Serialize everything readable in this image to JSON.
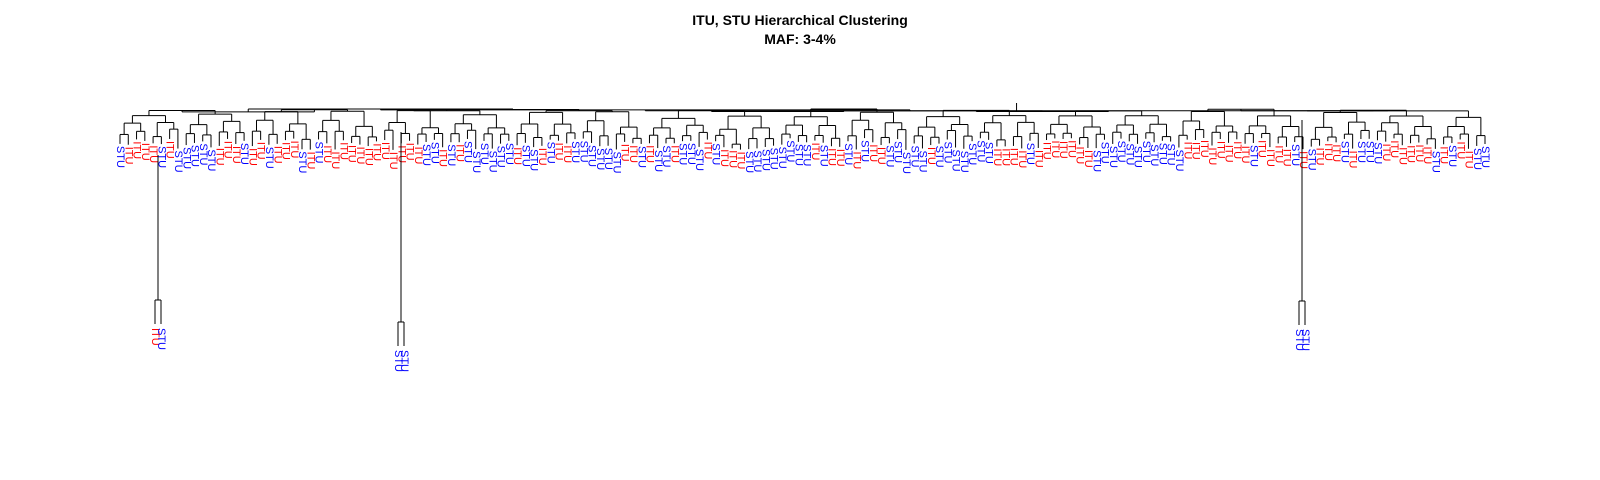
{
  "chart_data": {
    "type": "dendrogram",
    "title": "ITU, STU Hierarchical Clustering",
    "subtitle": "MAF: 3-4%",
    "groups": [
      "ITU",
      "STU"
    ],
    "colors": {
      "ITU": "#ff0000",
      "STU": "#0000ff",
      "branch": "#000000"
    },
    "outlier_clusters": [
      {
        "leaves": [
          "ITU",
          "STU"
        ]
      },
      {
        "leaves": [
          "STU",
          "STU"
        ]
      },
      {
        "leaves": [
          "STU",
          "STU"
        ]
      }
    ],
    "leaves": [
      "STU",
      "ITU",
      "ITU",
      "ITU",
      "ITU",
      "STU",
      "ITU",
      "STU",
      "STU",
      "STU",
      "STU",
      "STU",
      "ITU",
      "ITU",
      "ITU",
      "STU",
      "ITU",
      "ITU",
      "STU",
      "ITU",
      "ITU",
      "ITU",
      "STU",
      "ITU",
      "STU",
      "ITU",
      "ITU",
      "ITU",
      "ITU",
      "ITU",
      "ITU",
      "ITU",
      "ITU",
      "ITU",
      "ITU",
      "ITU",
      "ITU",
      "STU",
      "STU",
      "ITU",
      "STU",
      "ITU",
      "STU",
      "STU",
      "STU",
      "STU",
      "STU",
      "STU",
      "ITU",
      "STU",
      "STU",
      "ITU",
      "STU",
      "ITU",
      "ITU",
      "STU",
      "STU",
      "STU",
      "STU",
      "STU",
      "STU",
      "ITU",
      "ITU",
      "STU",
      "ITU",
      "STU",
      "STU",
      "ITU",
      "STU",
      "STU",
      "STU",
      "ITU",
      "STU",
      "ITU",
      "ITU",
      "ITU",
      "STU",
      "STU",
      "STU",
      "STU",
      "STU",
      "STU",
      "STU",
      "STU",
      "ITU",
      "STU",
      "ITU",
      "ITU",
      "STU",
      "ITU",
      "STU",
      "ITU",
      "ITU",
      "STU",
      "STU",
      "STU",
      "STU",
      "STU",
      "ITU",
      "STU",
      "STU",
      "STU",
      "STU",
      "STU",
      "STU",
      "STU",
      "ITU",
      "ITU",
      "ITU",
      "ITU",
      "STU",
      "ITU",
      "ITU",
      "ITU",
      "ITU",
      "ITU",
      "ITU",
      "ITU",
      "STU",
      "STU",
      "STU",
      "STU",
      "STU",
      "STU",
      "STU",
      "STU",
      "STU",
      "STU",
      "STU",
      "ITU",
      "ITU",
      "ITU",
      "ITU",
      "ITU",
      "ITU",
      "ITU",
      "ITU",
      "STU",
      "ITU",
      "ITU",
      "ITU",
      "ITU",
      "STU",
      "ITU",
      "STU",
      "ITU",
      "ITU",
      "ITU",
      "STU",
      "ITU",
      "STU",
      "STU",
      "STU",
      "ITU",
      "ITU",
      "ITU",
      "ITU",
      "ITU",
      "ITU",
      "STU",
      "ITU",
      "STU",
      "ITU",
      "ITU",
      "STU",
      "STU"
    ]
  }
}
